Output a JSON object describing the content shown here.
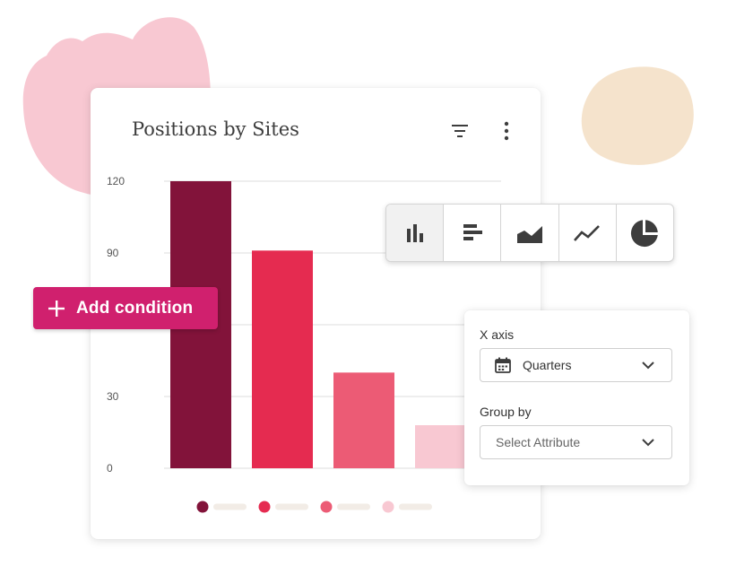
{
  "card": {
    "title": "Positions by Sites",
    "icons": [
      "filter-icon",
      "more-vertical-icon"
    ]
  },
  "chart_data": {
    "type": "bar",
    "title": "Positions by Sites",
    "categories": [
      "",
      "",
      "",
      ""
    ],
    "values": [
      120,
      91,
      40,
      18
    ],
    "colors": [
      "#82133a",
      "#e52b50",
      "#ec5b75",
      "#f8c8d2"
    ],
    "yticks": [
      "0",
      "30",
      "90",
      "120"
    ],
    "ylim": [
      0,
      120
    ],
    "grid": true,
    "legend": "bottom",
    "xlabel": "",
    "ylabel": ""
  },
  "add_condition": {
    "label": "Add condition",
    "icon": "plus-icon",
    "color": "#d0206e"
  },
  "chart_types": [
    {
      "name": "bar-chart-icon",
      "active": true
    },
    {
      "name": "horizontal-bar-chart-icon",
      "active": false
    },
    {
      "name": "area-chart-icon",
      "active": false
    },
    {
      "name": "line-chart-icon",
      "active": false
    },
    {
      "name": "pie-chart-icon",
      "active": false
    }
  ],
  "panel": {
    "x_axis_label": "X axis",
    "x_axis_value": "Quarters",
    "x_axis_icon": "calendar-icon",
    "group_by_label": "Group by",
    "group_by_placeholder": "Select Attribute"
  },
  "colors": {
    "pink_blob": "#f8c8d2",
    "peach_blob": "#f5e3cc"
  }
}
